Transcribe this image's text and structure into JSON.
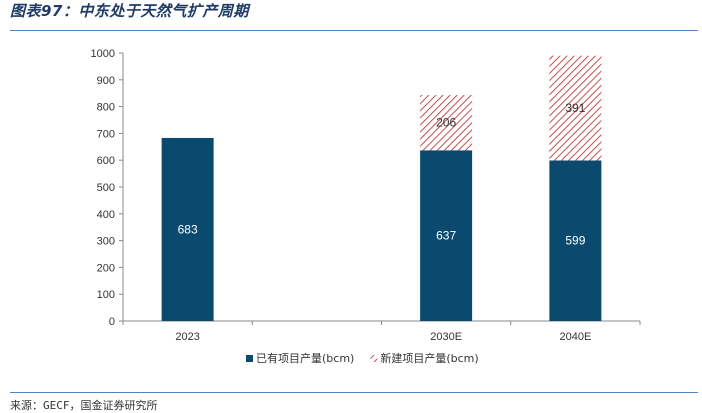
{
  "header": {
    "title": "图表97：中东处于天然气扩产周期"
  },
  "footer": {
    "source": "来源：GECF，国金证券研究所"
  },
  "chart_data": {
    "type": "bar",
    "stacked": true,
    "categories": [
      "2023",
      "",
      "2030E",
      "2040E"
    ],
    "series": [
      {
        "name": "已有项目产量(bcm)",
        "values": [
          683,
          null,
          637,
          599
        ],
        "color": "#0a4a6e"
      },
      {
        "name": "新建项目产量(bcm)",
        "values": [
          null,
          null,
          206,
          391
        ],
        "color": "#c0504d",
        "pattern": "hatch"
      }
    ],
    "ylim": [
      0,
      1000
    ],
    "yticks": [
      0,
      100,
      200,
      300,
      400,
      500,
      600,
      700,
      800,
      900,
      1000
    ],
    "legend": "bottom",
    "grid": false
  }
}
